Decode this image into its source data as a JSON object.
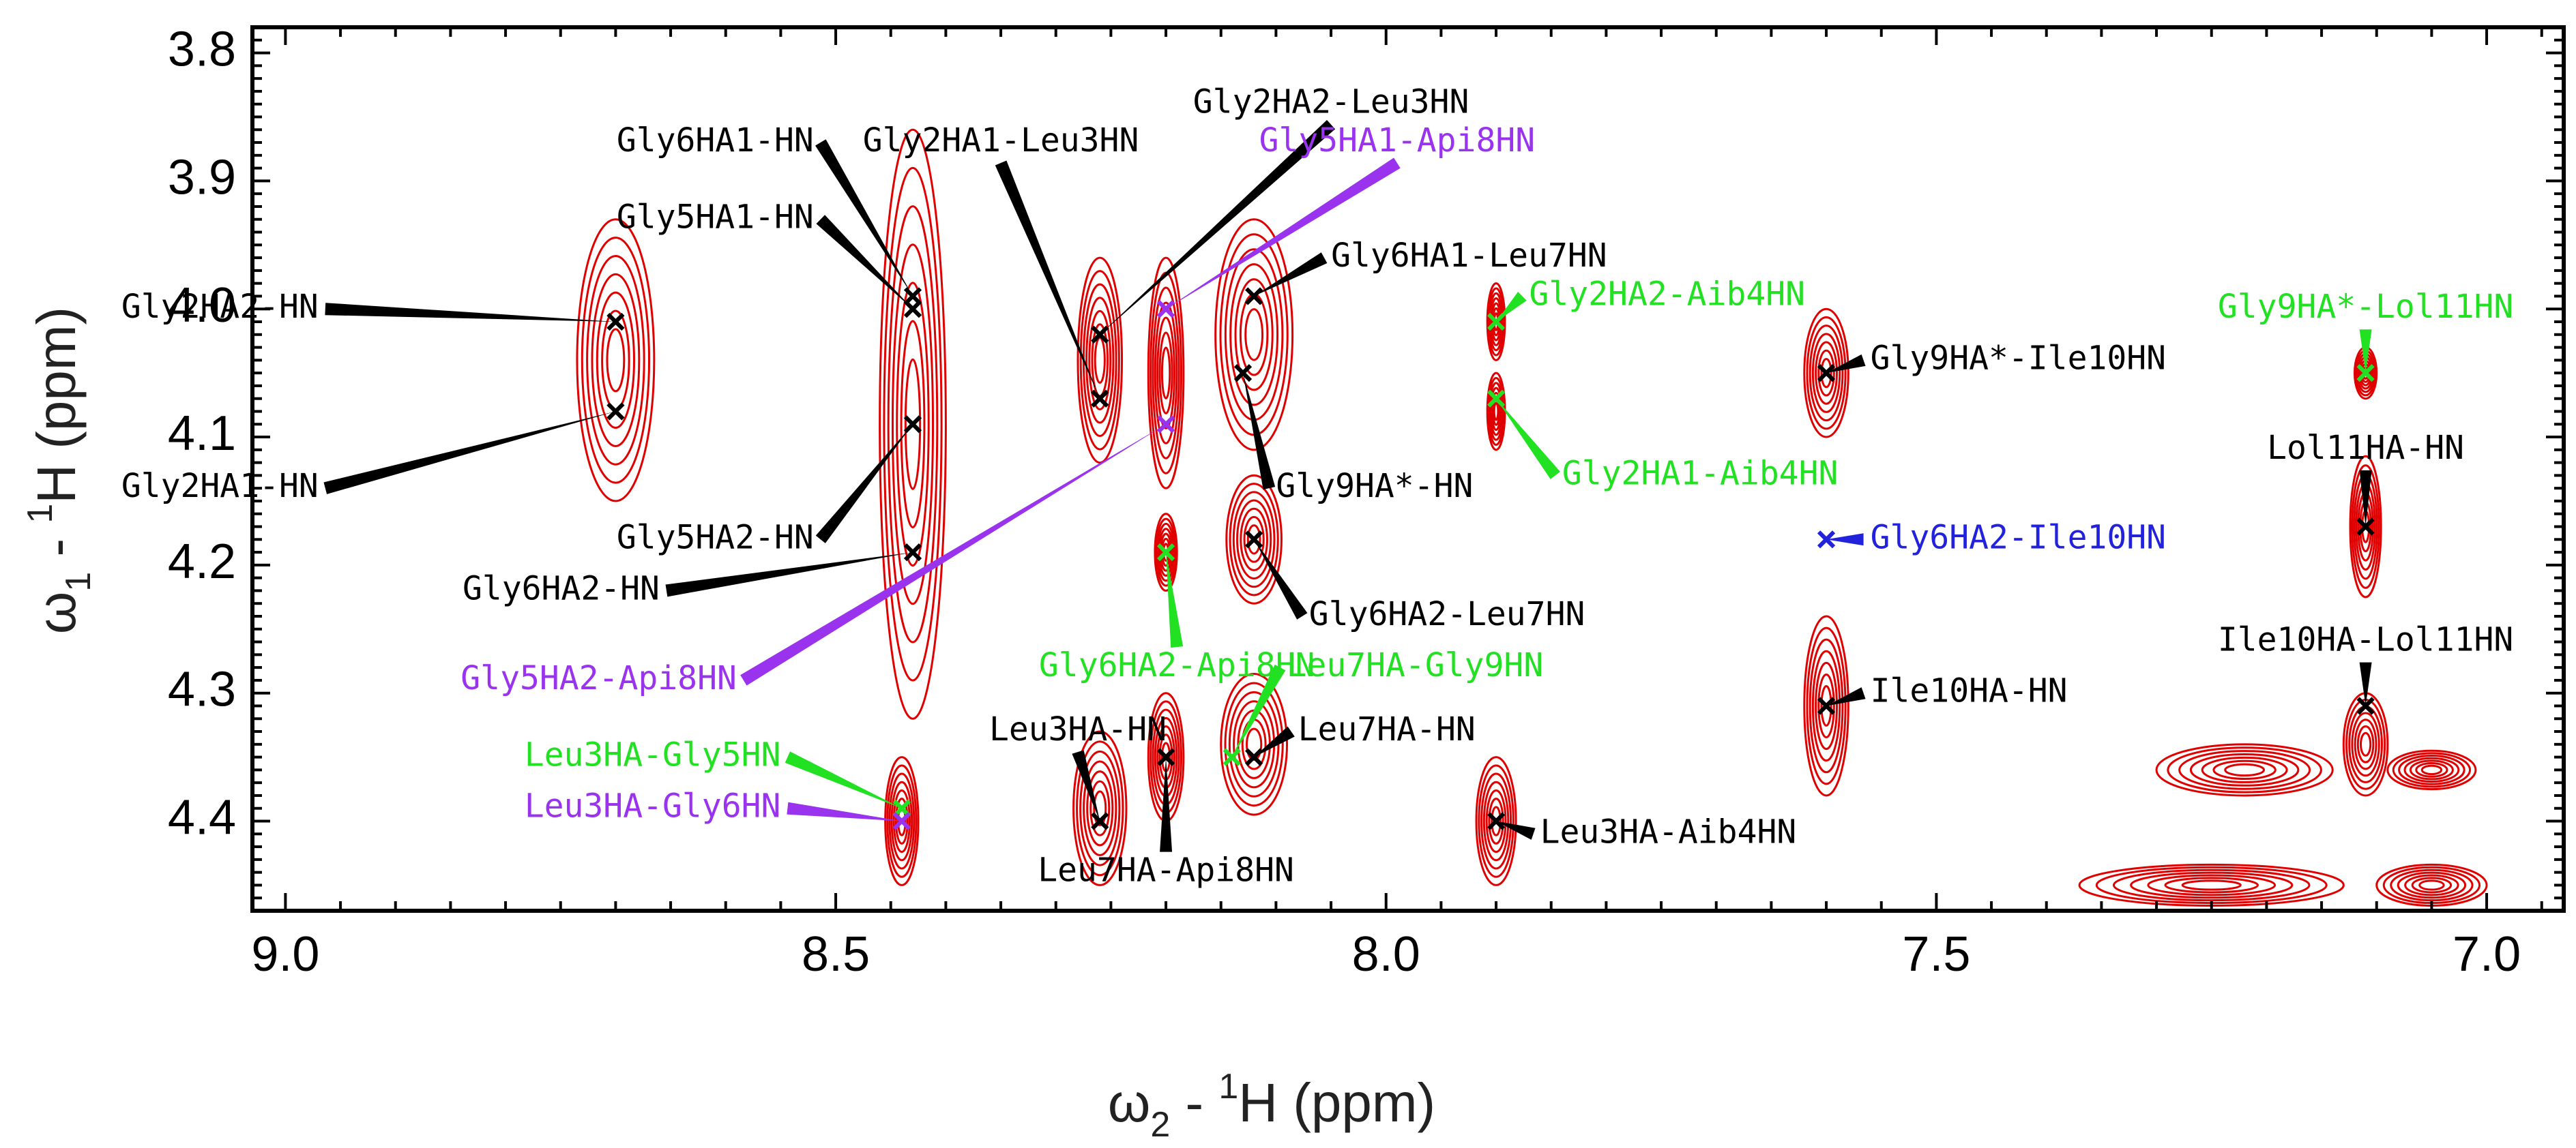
{
  "chart_data": {
    "type": "scatter",
    "subtype": "2D NMR spectrum (contour plot)",
    "title": "",
    "xaxis": {
      "label_main": "ω",
      "label_sub": "2",
      "label_sup": "1",
      "label_rest": " - ",
      "label_tail": "H  (ppm)",
      "range": [
        9.03,
        6.93
      ],
      "reversed": true,
      "major_ticks": [
        9.0,
        8.5,
        8.0,
        7.5,
        7.0
      ],
      "tick_labels": [
        "9.0",
        "8.5",
        "8.0",
        "7.5",
        "7.0"
      ]
    },
    "yaxis": {
      "label_main": "ω",
      "label_sub": "1",
      "label_sup": "1",
      "label_rest": " - ",
      "label_tail": "H  (ppm)",
      "range": [
        3.78,
        4.47
      ],
      "reversed": true,
      "major_ticks": [
        3.8,
        3.9,
        4.0,
        4.1,
        4.2,
        4.3,
        4.4
      ],
      "tick_labels": [
        "3.8",
        "3.9",
        "4.0",
        "4.1",
        "4.2",
        "4.3",
        "4.4"
      ]
    },
    "grid": false,
    "contour_color": "#e00000",
    "contour_regions": [
      {
        "x": 8.7,
        "y": 4.04,
        "rx": 0.035,
        "ry": 0.11
      },
      {
        "x": 8.43,
        "y": 4.09,
        "rx": 0.03,
        "ry": 0.23
      },
      {
        "x": 8.44,
        "y": 4.4,
        "rx": 0.015,
        "ry": 0.05
      },
      {
        "x": 8.26,
        "y": 4.04,
        "rx": 0.02,
        "ry": 0.08
      },
      {
        "x": 8.26,
        "y": 4.39,
        "rx": 0.024,
        "ry": 0.06
      },
      {
        "x": 8.2,
        "y": 4.05,
        "rx": 0.016,
        "ry": 0.09
      },
      {
        "x": 8.2,
        "y": 4.19,
        "rx": 0.01,
        "ry": 0.03
      },
      {
        "x": 8.2,
        "y": 4.35,
        "rx": 0.016,
        "ry": 0.05
      },
      {
        "x": 8.12,
        "y": 4.02,
        "rx": 0.035,
        "ry": 0.09
      },
      {
        "x": 8.12,
        "y": 4.18,
        "rx": 0.025,
        "ry": 0.05
      },
      {
        "x": 8.12,
        "y": 4.34,
        "rx": 0.03,
        "ry": 0.055
      },
      {
        "x": 7.9,
        "y": 4.01,
        "rx": 0.008,
        "ry": 0.03
      },
      {
        "x": 7.9,
        "y": 4.08,
        "rx": 0.008,
        "ry": 0.03
      },
      {
        "x": 7.9,
        "y": 4.4,
        "rx": 0.018,
        "ry": 0.05
      },
      {
        "x": 7.6,
        "y": 4.05,
        "rx": 0.02,
        "ry": 0.05
      },
      {
        "x": 7.6,
        "y": 4.31,
        "rx": 0.02,
        "ry": 0.07
      },
      {
        "x": 7.11,
        "y": 4.05,
        "rx": 0.01,
        "ry": 0.02
      },
      {
        "x": 7.11,
        "y": 4.17,
        "rx": 0.014,
        "ry": 0.055
      },
      {
        "x": 7.11,
        "y": 4.34,
        "rx": 0.02,
        "ry": 0.04
      },
      {
        "x": 7.22,
        "y": 4.36,
        "rx": 0.08,
        "ry": 0.02
      },
      {
        "x": 7.05,
        "y": 4.36,
        "rx": 0.04,
        "ry": 0.015
      },
      {
        "x": 7.25,
        "y": 4.45,
        "rx": 0.12,
        "ry": 0.016
      },
      {
        "x": 7.05,
        "y": 4.45,
        "rx": 0.05,
        "ry": 0.016
      }
    ],
    "series": [
      {
        "color": "#000000",
        "points": [
          {
            "label": "Gly2HA2-HN",
            "x": 8.7,
            "y": 4.01
          },
          {
            "label": "Gly2HA1-HN",
            "x": 8.7,
            "y": 4.08
          },
          {
            "label": "Gly6HA1-HN",
            "x": 8.43,
            "y": 3.99
          },
          {
            "label": "Gly5HA1-HN",
            "x": 8.43,
            "y": 4.0
          },
          {
            "label": "Gly5HA2-HN",
            "x": 8.43,
            "y": 4.09
          },
          {
            "label": "Gly6HA2-HN",
            "x": 8.43,
            "y": 4.19
          },
          {
            "label": "Gly2HA1-Leu3HN",
            "x": 8.26,
            "y": 4.07
          },
          {
            "label": "Gly2HA2-Leu3HN",
            "x": 8.26,
            "y": 4.02
          },
          {
            "label": "Gly6HA1-Leu7HN",
            "x": 8.12,
            "y": 3.99
          },
          {
            "label": "Gly9HA*-HN",
            "x": 8.13,
            "y": 4.05
          },
          {
            "label": "Gly6HA2-Leu7HN",
            "x": 8.12,
            "y": 4.18
          },
          {
            "label": "Leu3HA-HN",
            "x": 8.26,
            "y": 4.4
          },
          {
            "label": "Leu7HA-Api8HN",
            "x": 8.2,
            "y": 4.35
          },
          {
            "label": "Leu7HA-HN",
            "x": 8.12,
            "y": 4.35
          },
          {
            "label": "Leu3HA-Aib4HN",
            "x": 7.9,
            "y": 4.4
          },
          {
            "label": "Gly9HA*-Ile10HN",
            "x": 7.6,
            "y": 4.05
          },
          {
            "label": "Ile10HA-HN",
            "x": 7.6,
            "y": 4.31
          },
          {
            "label": "Lol11HA-HN",
            "x": 7.11,
            "y": 4.17
          },
          {
            "label": "Ile10HA-Lol11HN",
            "x": 7.11,
            "y": 4.31
          }
        ]
      },
      {
        "color": "#22e022",
        "points": [
          {
            "label": "Gly2HA2-Aib4HN",
            "x": 7.9,
            "y": 4.01
          },
          {
            "label": "Gly2HA1-Aib4HN",
            "x": 7.9,
            "y": 4.07
          },
          {
            "label": "Gly9HA*-Lol11HN",
            "x": 7.11,
            "y": 4.05
          },
          {
            "label": "Gly6HA2-Api8HN",
            "x": 8.2,
            "y": 4.19
          },
          {
            "label": "Leu7HA-Gly9HN",
            "x": 8.14,
            "y": 4.35
          },
          {
            "label": "Leu3HA-Gly5HN",
            "x": 8.44,
            "y": 4.39
          }
        ]
      },
      {
        "color": "#9933ee",
        "points": [
          {
            "label": "Gly5HA1-Api8HN",
            "x": 8.2,
            "y": 4.0
          },
          {
            "label": "Gly5HA2-Api8HN",
            "x": 8.2,
            "y": 4.09
          },
          {
            "label": "Leu3HA-Gly6HN",
            "x": 8.44,
            "y": 4.4
          }
        ]
      },
      {
        "color": "#2222dd",
        "points": [
          {
            "label": "Gly6HA2-Ile10HN",
            "x": 7.6,
            "y": 4.18
          }
        ]
      }
    ],
    "annotations": [
      {
        "text": "Gly2HA2-HN",
        "ref": "Gly2HA2-HN",
        "color": "#000000",
        "anchor": "end",
        "tx": 8.97,
        "ty": 4.0
      },
      {
        "text": "Gly2HA1-HN",
        "ref": "Gly2HA1-HN",
        "color": "#000000",
        "anchor": "end",
        "tx": 8.97,
        "ty": 4.14
      },
      {
        "text": "Gly6HA1-HN",
        "ref": "Gly6HA1-HN",
        "color": "#000000",
        "anchor": "end",
        "tx": 8.52,
        "ty": 3.87
      },
      {
        "text": "Gly5HA1-HN",
        "ref": "Gly5HA1-HN",
        "color": "#000000",
        "anchor": "end",
        "tx": 8.52,
        "ty": 3.93
      },
      {
        "text": "Gly5HA2-HN",
        "ref": "Gly5HA2-HN",
        "color": "#000000",
        "anchor": "end",
        "tx": 8.52,
        "ty": 4.18
      },
      {
        "text": "Gly6HA2-HN",
        "ref": "Gly6HA2-HN",
        "color": "#000000",
        "anchor": "end",
        "tx": 8.66,
        "ty": 4.22
      },
      {
        "text": "Gly2HA1-Leu3HN",
        "ref": "Gly2HA1-Leu3HN",
        "color": "#000000",
        "anchor": "middle",
        "tx": 8.35,
        "ty": 3.87
      },
      {
        "text": "Gly2HA2-Leu3HN",
        "ref": "Gly2HA2-Leu3HN",
        "color": "#000000",
        "anchor": "middle",
        "tx": 8.05,
        "ty": 3.84
      },
      {
        "text": "Gly5HA1-Api8HN",
        "ref": "Gly5HA1-Api8HN",
        "color": "#9933ee",
        "anchor": "middle",
        "tx": 7.99,
        "ty": 3.87
      },
      {
        "text": "Gly6HA1-Leu7HN",
        "ref": "Gly6HA1-Leu7HN",
        "color": "#000000",
        "anchor": "start",
        "tx": 8.05,
        "ty": 3.96
      },
      {
        "text": "Gly2HA2-Aib4HN",
        "ref": "Gly2HA2-Aib4HN",
        "color": "#22e022",
        "anchor": "start",
        "tx": 7.87,
        "ty": 3.99
      },
      {
        "text": "Gly9HA*-Lol11HN",
        "ref": "Gly9HA*-Lol11HN",
        "color": "#22e022",
        "anchor": "middle",
        "tx": 7.11,
        "ty": 4.0
      },
      {
        "text": "Gly9HA*-Ile10HN",
        "ref": "Gly9HA*-Ile10HN",
        "color": "#000000",
        "anchor": "start",
        "tx": 7.56,
        "ty": 4.04
      },
      {
        "text": "Gly9HA*-HN",
        "ref": "Gly9HA*-HN",
        "color": "#000000",
        "anchor": "start",
        "tx": 8.1,
        "ty": 4.14
      },
      {
        "text": "Gly2HA1-Aib4HN",
        "ref": "Gly2HA1-Aib4HN",
        "color": "#22e022",
        "anchor": "start",
        "tx": 7.84,
        "ty": 4.13
      },
      {
        "text": "Lol11HA-HN",
        "ref": "Lol11HA-HN",
        "color": "#000000",
        "anchor": "middle",
        "tx": 7.11,
        "ty": 4.11
      },
      {
        "text": "Gly6HA2-Ile10HN",
        "ref": "Gly6HA2-Ile10HN",
        "color": "#2222dd",
        "anchor": "start",
        "tx": 7.56,
        "ty": 4.18
      },
      {
        "text": "Gly6HA2-Leu7HN",
        "ref": "Gly6HA2-Leu7HN",
        "color": "#000000",
        "anchor": "start",
        "tx": 8.07,
        "ty": 4.24
      },
      {
        "text": "Gly5HA2-Api8HN",
        "ref": "Gly5HA2-Api8HN",
        "color": "#9933ee",
        "anchor": "end",
        "tx": 8.59,
        "ty": 4.29
      },
      {
        "text": "Gly6HA2-Api8HN",
        "ref": "Gly6HA2-Api8HN",
        "color": "#22e022",
        "anchor": "middle",
        "tx": 8.19,
        "ty": 4.28
      },
      {
        "text": "Leu7HA-Gly9HN",
        "ref": "Leu7HA-Gly9HN",
        "color": "#22e022",
        "anchor": "start",
        "tx": 8.09,
        "ty": 4.28
      },
      {
        "text": "Ile10HA-Lol11HN",
        "ref": "Ile10HA-Lol11HN",
        "color": "#000000",
        "anchor": "middle",
        "tx": 7.11,
        "ty": 4.26
      },
      {
        "text": "Ile10HA-HN",
        "ref": "Ile10HA-HN",
        "color": "#000000",
        "anchor": "start",
        "tx": 7.56,
        "ty": 4.3
      },
      {
        "text": "Leu3HA-Gly5HN",
        "ref": "Leu3HA-Gly5HN",
        "color": "#22e022",
        "anchor": "end",
        "tx": 8.55,
        "ty": 4.35
      },
      {
        "text": "Leu3HA-HN",
        "ref": "Leu3HA-HN",
        "color": "#000000",
        "anchor": "middle",
        "tx": 8.28,
        "ty": 4.33
      },
      {
        "text": "Leu7HA-HN",
        "ref": "Leu7HA-HN",
        "color": "#000000",
        "anchor": "start",
        "tx": 8.08,
        "ty": 4.33
      },
      {
        "text": "Leu3HA-Gly6HN",
        "ref": "Leu3HA-Gly6HN",
        "color": "#9933ee",
        "anchor": "end",
        "tx": 8.55,
        "ty": 4.39
      },
      {
        "text": "Leu3HA-Aib4HN",
        "ref": "Leu3HA-Aib4HN",
        "color": "#000000",
        "anchor": "start",
        "tx": 7.86,
        "ty": 4.41
      },
      {
        "text": "Leu7HA-Api8HN",
        "ref": "Leu7HA-Api8HN",
        "color": "#000000",
        "anchor": "middle",
        "tx": 8.2,
        "ty": 4.44
      }
    ]
  }
}
